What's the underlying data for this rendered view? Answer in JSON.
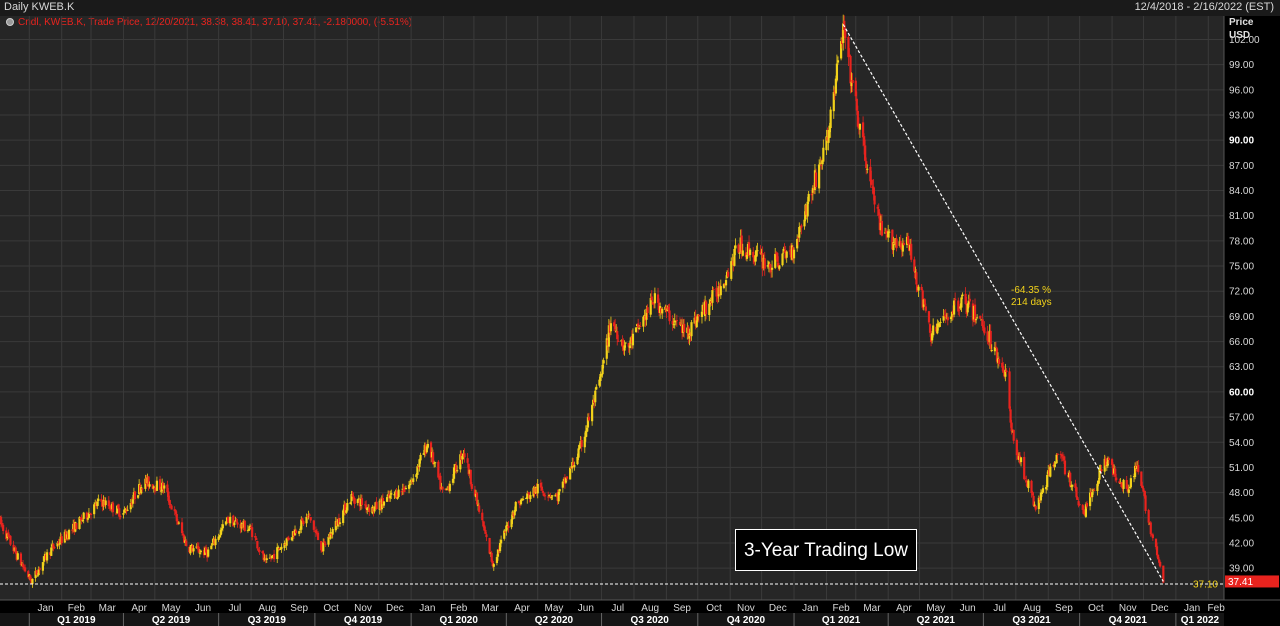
{
  "header": {
    "title": "Daily KWEB.K",
    "date_range": "12/4/2018 - 2/16/2022 (EST)"
  },
  "legend": {
    "text": "Cndl, KWEB.K, Trade Price, 12/20/2021, 38.38, 38.41, 37.10, 37.41, -2.180000, (-5.51%)"
  },
  "axis": {
    "price_label": "Price",
    "currency_label": "USD"
  },
  "annotation": {
    "pct": "-64.35 %",
    "days": "214 days"
  },
  "callout": {
    "text": "3-Year Trading Low"
  },
  "colors": {
    "up": "#f2d21a",
    "down": "#e8231e",
    "background": "#262626",
    "grid": "#3a3a3a"
  },
  "chart_data": {
    "type": "candlestick",
    "title": "Daily KWEB.K",
    "ylabel": "Price USD",
    "ylim": [
      35.2,
      104.8
    ],
    "y_ticks": [
      "39.00",
      "42.00",
      "45.00",
      "48.00",
      "51.00",
      "54.00",
      "57.00",
      "60.00",
      "63.00",
      "66.00",
      "69.00",
      "72.00",
      "75.00",
      "78.00",
      "81.00",
      "84.00",
      "87.00",
      "90.00",
      "93.00",
      "96.00",
      "99.00",
      "102.00"
    ],
    "x_month_labels": [
      "Jan",
      "Feb",
      "Mar",
      "Apr",
      "May",
      "Jun",
      "Jul",
      "Aug",
      "Sep",
      "Oct",
      "Nov",
      "Dec",
      "Jan",
      "Feb",
      "Mar",
      "Apr",
      "May",
      "Jun",
      "Jul",
      "Aug",
      "Sep",
      "Oct",
      "Nov",
      "Dec",
      "Jan",
      "Feb",
      "Mar",
      "Apr",
      "May",
      "Jun",
      "Jul",
      "Aug",
      "Sep",
      "Oct",
      "Nov",
      "Dec",
      "Jan",
      "Feb"
    ],
    "x_quarter_labels": [
      "Q1 2019",
      "Q2 2019",
      "Q3 2019",
      "Q4 2019",
      "Q1 2020",
      "Q2 2020",
      "Q3 2020",
      "Q4 2020",
      "Q1 2021",
      "Q2 2021",
      "Q3 2021",
      "Q4 2021",
      "Q1 2022"
    ],
    "price_path": [
      [
        "2018-12-04",
        44.5
      ],
      [
        "2018-12-20",
        40.5
      ],
      [
        "2019-01-03",
        37.4
      ],
      [
        "2019-01-20",
        41.0
      ],
      [
        "2019-02-10",
        43.5
      ],
      [
        "2019-03-10",
        47.0
      ],
      [
        "2019-04-01",
        45.5
      ],
      [
        "2019-04-20",
        49.3
      ],
      [
        "2019-05-10",
        48.6
      ],
      [
        "2019-06-01",
        41.5
      ],
      [
        "2019-06-20",
        40.8
      ],
      [
        "2019-07-10",
        44.8
      ],
      [
        "2019-08-01",
        43.6
      ],
      [
        "2019-08-15",
        39.5
      ],
      [
        "2019-09-10",
        43.2
      ],
      [
        "2019-09-25",
        45.2
      ],
      [
        "2019-10-08",
        41.3
      ],
      [
        "2019-11-05",
        47.5
      ],
      [
        "2019-11-25",
        46.0
      ],
      [
        "2019-12-31",
        49.0
      ],
      [
        "2020-01-17",
        53.9
      ],
      [
        "2020-02-01",
        47.5
      ],
      [
        "2020-02-20",
        53.0
      ],
      [
        "2020-03-19",
        39.5
      ],
      [
        "2020-04-10",
        46.5
      ],
      [
        "2020-05-01",
        48.5
      ],
      [
        "2020-05-20",
        47.5
      ],
      [
        "2020-06-10",
        53.0
      ],
      [
        "2020-07-01",
        62.0
      ],
      [
        "2020-07-10",
        68.5
      ],
      [
        "2020-07-25",
        65.0
      ],
      [
        "2020-08-20",
        71.0
      ],
      [
        "2020-09-20",
        67.0
      ],
      [
        "2020-10-20",
        72.0
      ],
      [
        "2020-11-10",
        77.5
      ],
      [
        "2020-12-10",
        75.0
      ],
      [
        "2020-12-31",
        77.0
      ],
      [
        "2021-02-01",
        89.5
      ],
      [
        "2021-02-17",
        103.2
      ],
      [
        "2021-03-05",
        91.0
      ],
      [
        "2021-03-26",
        78.5
      ],
      [
        "2021-04-20",
        77.5
      ],
      [
        "2021-05-12",
        66.8
      ],
      [
        "2021-06-10",
        71.0
      ],
      [
        "2021-07-01",
        68.0
      ],
      [
        "2021-07-23",
        62.0
      ],
      [
        "2021-07-28",
        55.0
      ],
      [
        "2021-08-20",
        46.0
      ],
      [
        "2021-09-10",
        53.0
      ],
      [
        "2021-10-05",
        45.5
      ],
      [
        "2021-10-25",
        52.0
      ],
      [
        "2021-11-15",
        48.5
      ],
      [
        "2021-11-25",
        51.0
      ],
      [
        "2021-12-10",
        42.5
      ],
      [
        "2021-12-20",
        37.41
      ]
    ],
    "last_price": "37.41",
    "support_level": "37.10",
    "trendline": {
      "from": [
        "2021-02-17",
        103.8
      ],
      "to": [
        "2021-12-20",
        37.41
      ]
    }
  }
}
